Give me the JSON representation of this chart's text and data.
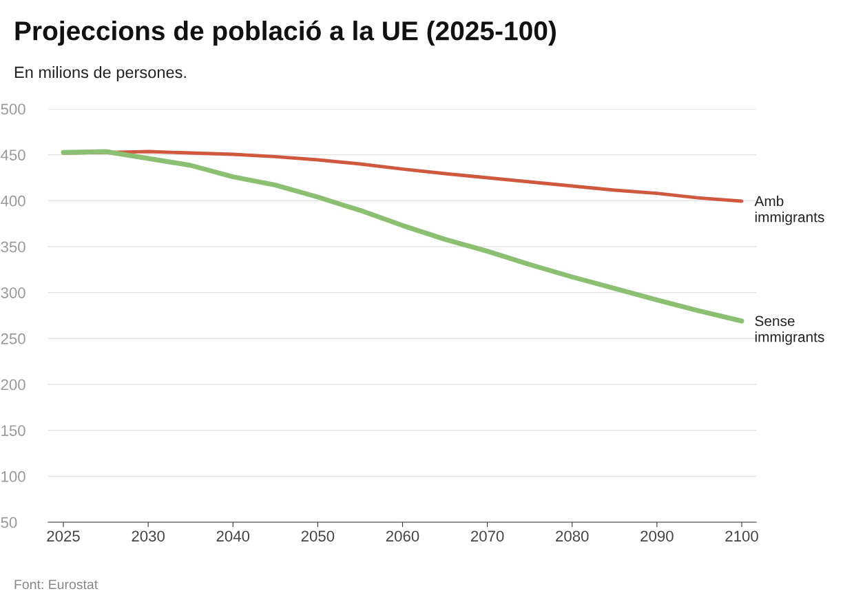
{
  "chart_data": {
    "type": "line",
    "title": "Projeccions de població a la UE (2025-100)",
    "subtitle": "En milions de persones.",
    "categories": [
      "2025",
      null,
      "2030",
      null,
      "2040",
      null,
      "2050",
      null,
      "2060",
      null,
      "2070",
      null,
      "2080",
      null,
      "2090",
      null,
      "2100"
    ],
    "series": [
      {
        "name": "Amb immigrants",
        "color": "#d0583e",
        "values": [
          452,
          452.5,
          453.5,
          452,
          450.5,
          448,
          444.5,
          440,
          434.5,
          429.5,
          425,
          420.5,
          416,
          411.5,
          408,
          403,
          399.5
        ]
      },
      {
        "name": "Sense immigrants",
        "color": "#8bbf72",
        "values": [
          452.5,
          453.5,
          446,
          438.5,
          426,
          417,
          404,
          389.5,
          373,
          358,
          345,
          330.5,
          317,
          304.5,
          292,
          280,
          269
        ]
      }
    ],
    "ylim": [
      50,
      500
    ],
    "yticks": [
      50,
      100,
      150,
      200,
      250,
      300,
      350,
      400,
      450,
      500
    ],
    "grid": "y",
    "legend": false,
    "marker": "none",
    "line_style": "solid",
    "annotations": [
      "Font: Eurostat"
    ]
  }
}
